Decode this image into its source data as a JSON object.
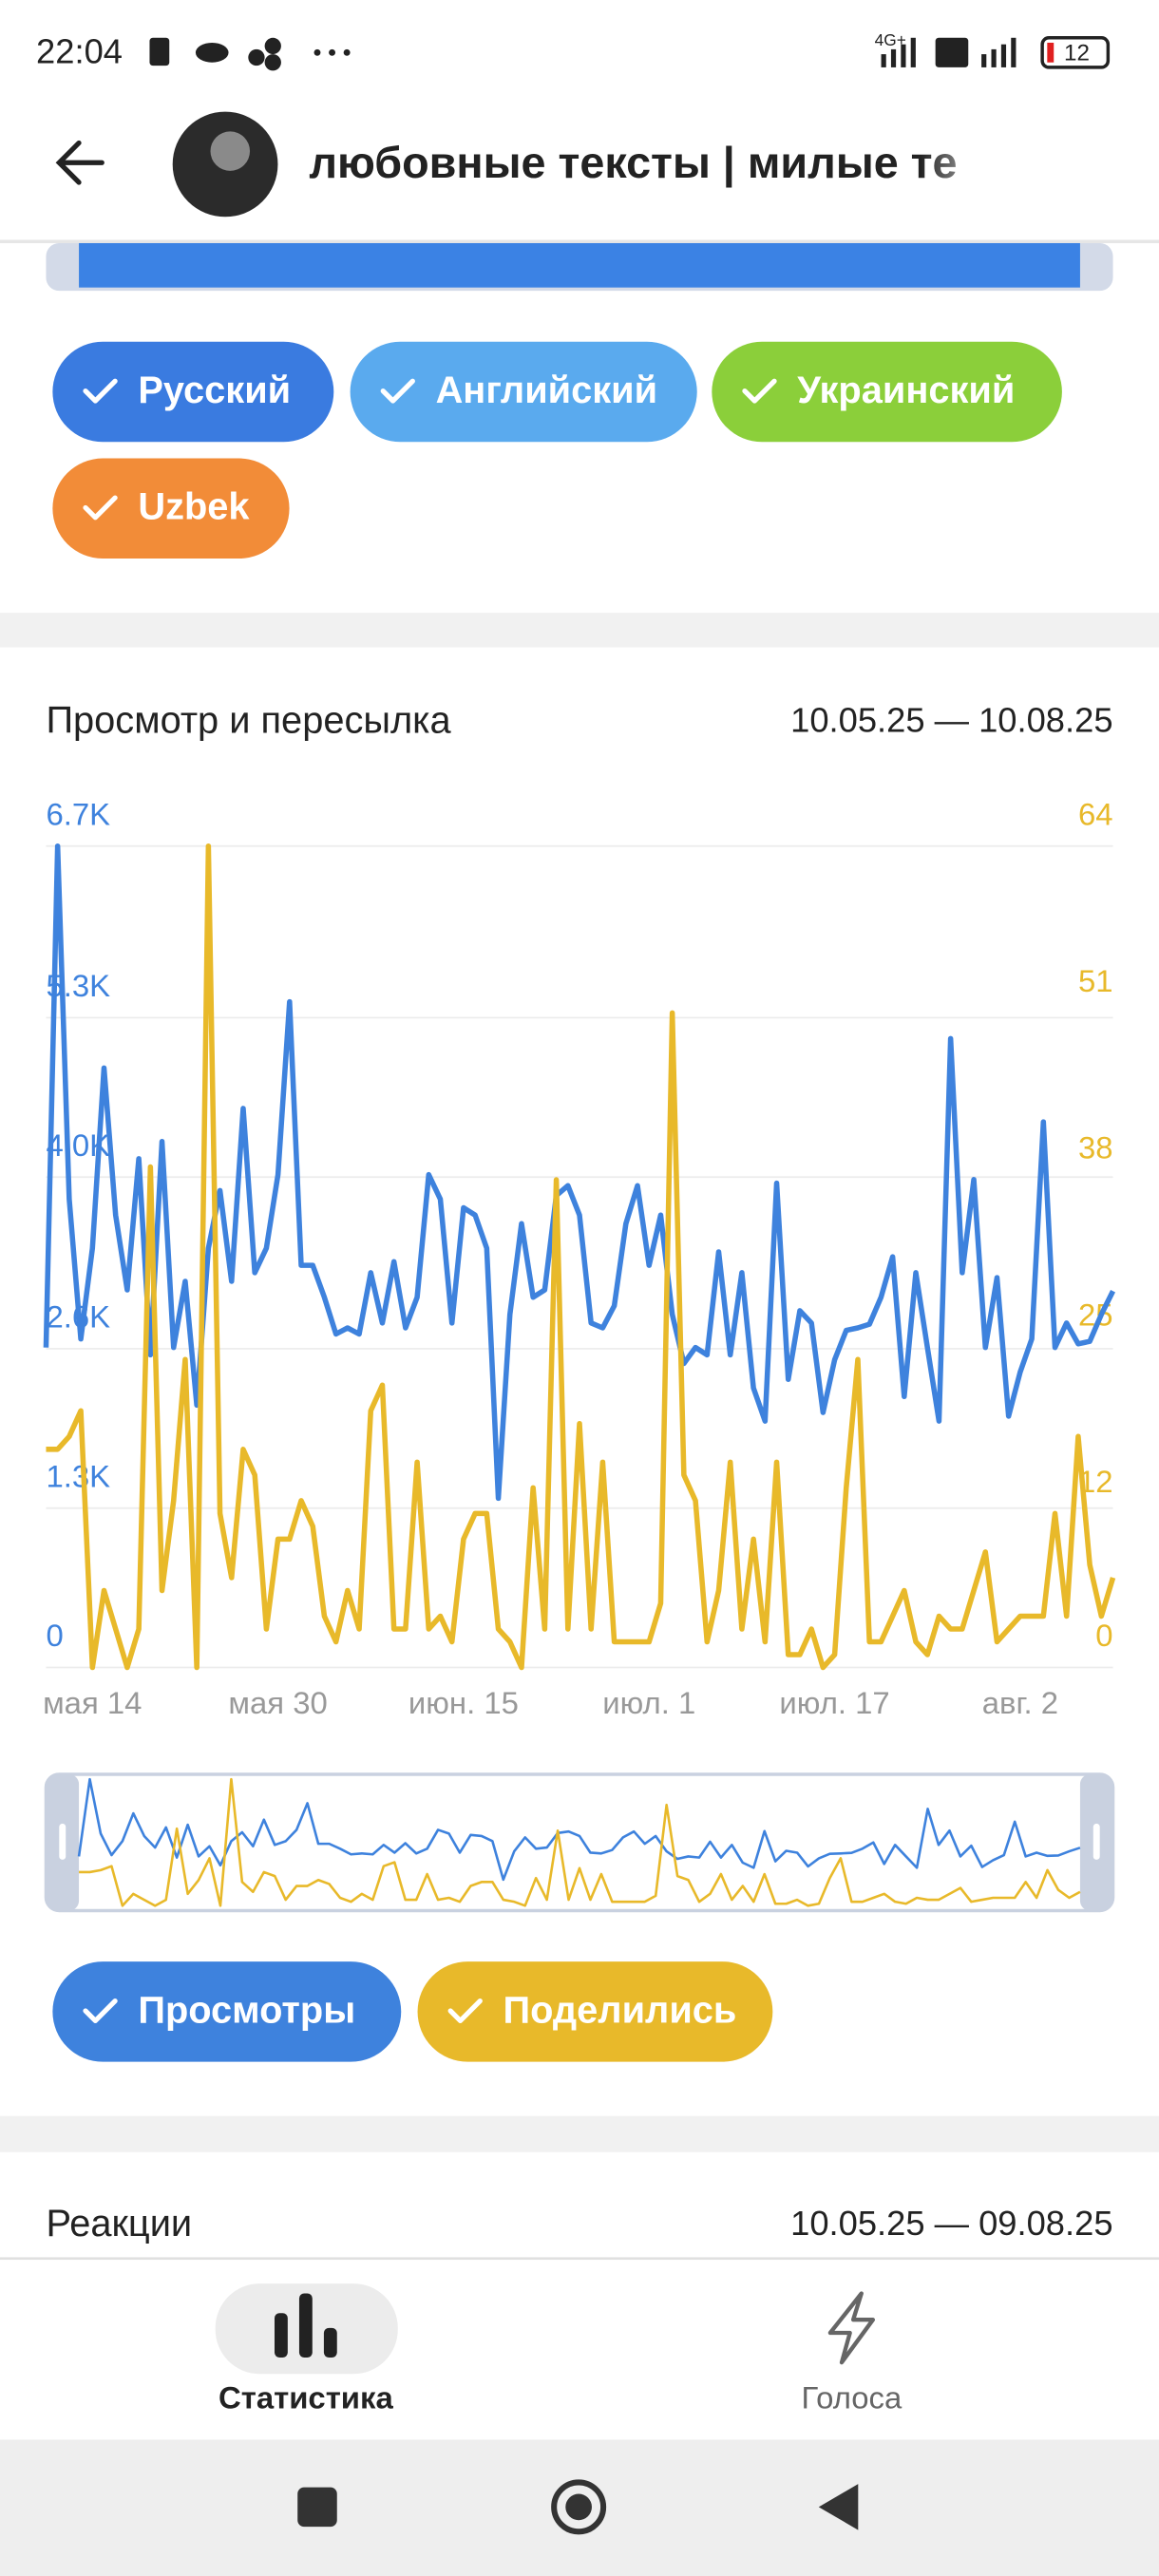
{
  "status_bar": {
    "time": "22:04",
    "network": "4G+",
    "battery": "12"
  },
  "header": {
    "title": "любовные тексты | милые те"
  },
  "language_filters": [
    "Русский",
    "Английский",
    "Украинский",
    "Uzbek"
  ],
  "chart_data": {
    "type": "line",
    "title": "Просмотр и пересылка",
    "date_range": "10.05.25 — 10.08.25",
    "categories": [
      null,
      null,
      null,
      null,
      "мая 14",
      null,
      null,
      null,
      null,
      null,
      null,
      null,
      null,
      null,
      null,
      null,
      null,
      null,
      null,
      null,
      "мая 30",
      null,
      null,
      null,
      null,
      null,
      null,
      null,
      null,
      null,
      null,
      null,
      null,
      null,
      null,
      null,
      "июн. 15",
      null,
      null,
      null,
      null,
      null,
      null,
      null,
      null,
      null,
      null,
      null,
      null,
      null,
      null,
      null,
      "июл. 1",
      null,
      null,
      null,
      null,
      null,
      null,
      null,
      null,
      null,
      null,
      null,
      null,
      null,
      null,
      null,
      "июл. 17",
      null,
      null,
      null,
      null,
      null,
      null,
      null,
      null,
      null,
      null,
      null,
      null,
      null,
      null,
      null,
      "авг. 2",
      null,
      null,
      null,
      null,
      null,
      null,
      null,
      null
    ],
    "series": [
      {
        "name": "Просмотры",
        "color": "#3e82dd",
        "values": [
          2610,
          6700,
          3820,
          2680,
          3420,
          4890,
          3690,
          3080,
          4150,
          2550,
          4290,
          2610,
          3150,
          2140,
          3420,
          3890,
          3150,
          4560,
          3220,
          3420,
          4020,
          5430,
          3280,
          3280,
          3020,
          2720,
          2770,
          2720,
          3220,
          2810,
          3310,
          2770,
          3020,
          4020,
          3820,
          2810,
          3750,
          3690,
          3420,
          1380,
          2880,
          3620,
          3020,
          3080,
          3850,
          3930,
          3690,
          2810,
          2770,
          2950,
          3620,
          3930,
          3280,
          3690,
          2880,
          2480,
          2610,
          2550,
          3390,
          2550,
          3220,
          2280,
          2010,
          3950,
          2350,
          2910,
          2810,
          2080,
          2510,
          2750,
          2770,
          2800,
          3020,
          3350,
          2210,
          3220,
          2610,
          2010,
          5130,
          3220,
          3980,
          2610,
          3180,
          2050,
          2410,
          2680,
          4450,
          2610,
          2810,
          2640,
          2660,
          2880,
          3070
        ]
      },
      {
        "name": "Поделились",
        "color": "#e8b92a",
        "axis": "y2",
        "values": [
          17,
          17,
          18,
          20,
          0,
          6,
          3,
          0,
          3,
          39,
          6,
          13,
          24,
          0,
          64,
          12,
          7,
          17,
          15,
          3,
          10,
          10,
          13,
          11,
          4,
          2,
          6,
          3,
          20,
          22,
          3,
          3,
          16,
          3,
          4,
          2,
          10,
          12,
          12,
          3,
          2,
          0,
          14,
          3,
          38,
          3,
          19,
          3,
          16,
          2,
          2,
          2,
          2,
          5,
          51,
          15,
          13,
          2,
          6,
          16,
          3,
          10,
          2,
          16,
          1,
          1,
          3,
          0,
          1,
          14,
          24,
          2,
          2,
          4,
          6,
          2,
          1,
          4,
          3,
          3,
          6,
          9,
          2,
          3,
          4,
          4,
          4,
          12,
          4,
          18,
          8,
          4,
          7
        ]
      }
    ],
    "ylim": [
      0,
      6700
    ],
    "yticks": [
      0,
      {
        "value": 1300,
        "label": "1.3K"
      },
      {
        "value": 2600,
        "label": "2.6K"
      },
      {
        "value": 4000,
        "label": "4.0K"
      },
      {
        "value": 5300,
        "label": "5.3K"
      },
      {
        "value": 6700,
        "label": "6.7K"
      }
    ],
    "y2lim": [
      0,
      64
    ],
    "y2ticks": [
      0,
      12,
      25,
      38,
      51,
      64
    ],
    "grid": true
  },
  "reactions": {
    "title": "Реакции",
    "date_range": "10.05.25 — 09.08.25"
  },
  "bottom_nav": [
    "Статистика",
    "Голоса"
  ]
}
